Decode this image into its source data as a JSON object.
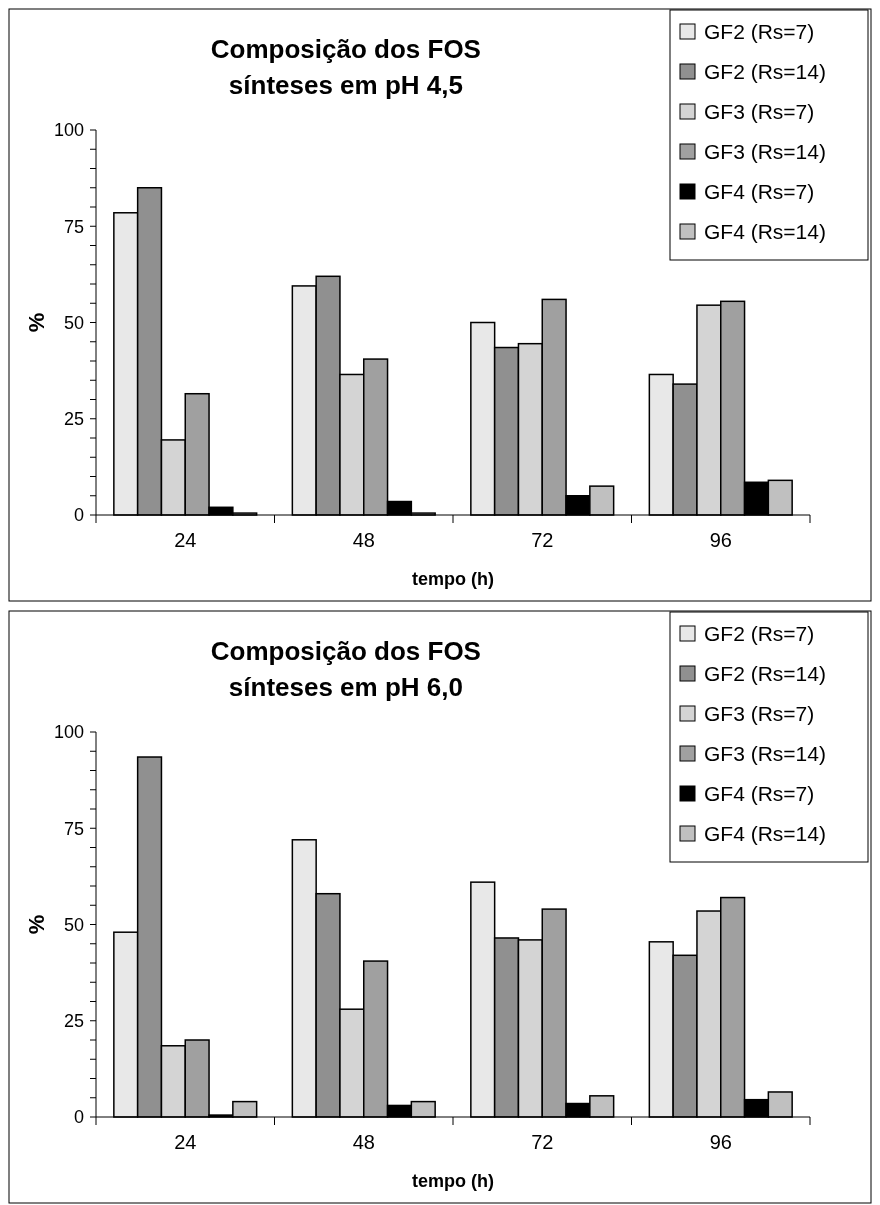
{
  "chart_data": [
    {
      "type": "bar",
      "title": "Composição dos FOS\nsínteses em pH 4,5",
      "xlabel": "tempo (h)",
      "ylabel": "%",
      "categories": [
        "24",
        "48",
        "72",
        "96"
      ],
      "ylim": [
        0,
        100
      ],
      "yticks": [
        0,
        {
          "value": 5,
          "label": null
        },
        {
          "value": 10,
          "label": null
        },
        {
          "value": 15,
          "label": null
        },
        {
          "value": 20,
          "label": null
        },
        25,
        {
          "value": 30,
          "label": null
        },
        {
          "value": 35,
          "label": null
        },
        {
          "value": 40,
          "label": null
        },
        {
          "value": 45,
          "label": null
        },
        50,
        {
          "value": 55,
          "label": null
        },
        {
          "value": 60,
          "label": null
        },
        {
          "value": 65,
          "label": null
        },
        {
          "value": 70,
          "label": null
        },
        75,
        {
          "value": 80,
          "label": null
        },
        {
          "value": 85,
          "label": null
        },
        {
          "value": 90,
          "label": null
        },
        {
          "value": 95,
          "label": null
        },
        100
      ],
      "legend": "top right",
      "grid": false,
      "series": [
        {
          "name": "GF2 (Rs=7)",
          "color": "#e8e8e8",
          "values": [
            78.5,
            59.5,
            50,
            36.5
          ]
        },
        {
          "name": "GF2 (Rs=14)",
          "color": "#909090",
          "values": [
            85,
            62,
            43.5,
            34
          ]
        },
        {
          "name": "GF3 (Rs=7)",
          "color": "#d4d4d4",
          "values": [
            19.5,
            36.5,
            44.5,
            54.5
          ]
        },
        {
          "name": "GF3 (Rs=14)",
          "color": "#a0a0a0",
          "values": [
            31.5,
            40.5,
            56,
            55.5
          ]
        },
        {
          "name": "GF4 (Rs=7)",
          "color": "#000000",
          "values": [
            2,
            3.5,
            5,
            8.5
          ]
        },
        {
          "name": "GF4 (Rs=14)",
          "color": "#c0c0c0",
          "values": [
            0.5,
            0.5,
            7.5,
            9
          ]
        }
      ]
    },
    {
      "type": "bar",
      "title": "Composição dos FOS\nsínteses em pH 6,0",
      "xlabel": "tempo (h)",
      "ylabel": "%",
      "categories": [
        "24",
        "48",
        "72",
        "96"
      ],
      "ylim": [
        0,
        100
      ],
      "yticks": [
        0,
        {
          "value": 5,
          "label": null
        },
        {
          "value": 10,
          "label": null
        },
        {
          "value": 15,
          "label": null
        },
        {
          "value": 20,
          "label": null
        },
        25,
        {
          "value": 30,
          "label": null
        },
        {
          "value": 35,
          "label": null
        },
        {
          "value": 40,
          "label": null
        },
        {
          "value": 45,
          "label": null
        },
        50,
        {
          "value": 55,
          "label": null
        },
        {
          "value": 60,
          "label": null
        },
        {
          "value": 65,
          "label": null
        },
        {
          "value": 70,
          "label": null
        },
        75,
        {
          "value": 80,
          "label": null
        },
        {
          "value": 85,
          "label": null
        },
        {
          "value": 90,
          "label": null
        },
        {
          "value": 95,
          "label": null
        },
        100
      ],
      "legend": "top right",
      "grid": false,
      "series": [
        {
          "name": "GF2 (Rs=7)",
          "color": "#e8e8e8",
          "values": [
            48,
            72,
            61,
            45.5
          ]
        },
        {
          "name": "GF2 (Rs=14)",
          "color": "#909090",
          "values": [
            93.5,
            58,
            46.5,
            42
          ]
        },
        {
          "name": "GF3 (Rs=7)",
          "color": "#d4d4d4",
          "values": [
            18.5,
            28,
            46,
            53.5
          ]
        },
        {
          "name": "GF3 (Rs=14)",
          "color": "#a0a0a0",
          "values": [
            20,
            40.5,
            54,
            57
          ]
        },
        {
          "name": "GF4 (Rs=7)",
          "color": "#000000",
          "values": [
            0.5,
            3,
            3.5,
            4.5
          ]
        },
        {
          "name": "GF4 (Rs=14)",
          "color": "#c0c0c0",
          "values": [
            4,
            4,
            5.5,
            6.5
          ]
        }
      ]
    }
  ]
}
